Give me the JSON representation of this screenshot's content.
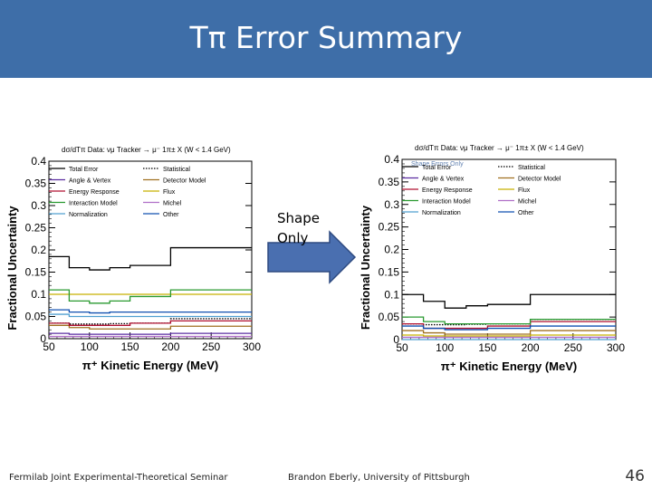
{
  "slide": {
    "title": "Tπ Error Summary",
    "arrow_label_line1": "Shape",
    "arrow_label_line2": "Only",
    "footer_left": "Fermilab Joint Experimental-Theoretical Seminar",
    "footer_center": "Brandon Eberly, University of Pittsburgh",
    "page_number": "46",
    "colors": {
      "title_bar": "#3e6ea8",
      "arrow": "#4a6fb0"
    }
  },
  "chart_data": [
    {
      "type": "line",
      "title": "dσ/dTπ Data: νμ Tracker → μ⁻ 1π± X (W < 1.4 GeV)",
      "subtitle": "",
      "xlabel": "π⁺ Kinetic Energy (MeV)",
      "ylabel": "Fractional Uncertainty",
      "xlim": [
        50,
        300
      ],
      "ylim": [
        0,
        0.4
      ],
      "x_ticks": [
        50,
        100,
        150,
        200,
        250,
        300
      ],
      "y_ticks": [
        0,
        0.05,
        0.1,
        0.15,
        0.2,
        0.25,
        0.3,
        0.35,
        0.4
      ],
      "bin_edges": [
        50,
        75,
        100,
        125,
        150,
        200,
        300
      ],
      "grid": false,
      "legend_position": "top",
      "series": [
        {
          "name": "Total Error",
          "color": "#000000",
          "dash": "solid",
          "values": [
            0.185,
            0.16,
            0.155,
            0.16,
            0.165,
            0.205
          ]
        },
        {
          "name": "Statistical",
          "color": "#000000",
          "dash": "dotted",
          "values": [
            0.035,
            0.033,
            0.033,
            0.034,
            0.035,
            0.045
          ]
        },
        {
          "name": "Angle & Vertex",
          "color": "#5a2ca0",
          "dash": "solid",
          "values": [
            0.012,
            0.01,
            0.01,
            0.01,
            0.01,
            0.012
          ]
        },
        {
          "name": "Detector Model",
          "color": "#a07020",
          "dash": "solid",
          "values": [
            0.03,
            0.025,
            0.022,
            0.022,
            0.022,
            0.028
          ]
        },
        {
          "name": "Energy Response",
          "color": "#b01030",
          "dash": "solid",
          "values": [
            0.035,
            0.03,
            0.03,
            0.03,
            0.035,
            0.04
          ]
        },
        {
          "name": "Flux",
          "color": "#c8b000",
          "dash": "solid",
          "values": [
            0.1,
            0.1,
            0.1,
            0.1,
            0.1,
            0.1
          ]
        },
        {
          "name": "Interaction Model",
          "color": "#2a9a30",
          "dash": "solid",
          "values": [
            0.11,
            0.085,
            0.08,
            0.085,
            0.095,
            0.11
          ]
        },
        {
          "name": "Michel",
          "color": "#b070c8",
          "dash": "solid",
          "values": [
            0.005,
            0.005,
            0.005,
            0.005,
            0.005,
            0.005
          ]
        },
        {
          "name": "Normalization",
          "color": "#50a0d0",
          "dash": "solid",
          "values": [
            0.055,
            0.05,
            0.05,
            0.05,
            0.05,
            0.05
          ]
        },
        {
          "name": "Other",
          "color": "#1050b0",
          "dash": "solid",
          "values": [
            0.065,
            0.06,
            0.058,
            0.06,
            0.06,
            0.06
          ]
        }
      ]
    },
    {
      "type": "line",
      "title": "dσ/dTπ Data: νμ Tracker → μ⁻ 1π± X (W < 1.4 GeV)",
      "subtitle": "Shape Errors Only",
      "xlabel": "π⁺ Kinetic Energy (MeV)",
      "ylabel": "Fractional Uncertainty",
      "xlim": [
        50,
        300
      ],
      "ylim": [
        0,
        0.4
      ],
      "x_ticks": [
        50,
        100,
        150,
        200,
        250,
        300
      ],
      "y_ticks": [
        0,
        0.05,
        0.1,
        0.15,
        0.2,
        0.25,
        0.3,
        0.35,
        0.4
      ],
      "bin_edges": [
        50,
        75,
        100,
        125,
        150,
        200,
        300
      ],
      "grid": false,
      "legend_position": "top",
      "series": [
        {
          "name": "Total Error",
          "color": "#000000",
          "dash": "solid",
          "values": [
            0.1,
            0.085,
            0.07,
            0.075,
            0.078,
            0.1
          ]
        },
        {
          "name": "Statistical",
          "color": "#000000",
          "dash": "dotted",
          "values": [
            0.035,
            0.033,
            0.033,
            0.034,
            0.035,
            0.045
          ]
        },
        {
          "name": "Angle & Vertex",
          "color": "#5a2ca0",
          "dash": "solid",
          "values": [
            0.005,
            0.005,
            0.005,
            0.005,
            0.005,
            0.005
          ]
        },
        {
          "name": "Detector Model",
          "color": "#a07020",
          "dash": "solid",
          "values": [
            0.02,
            0.015,
            0.012,
            0.012,
            0.012,
            0.02
          ]
        },
        {
          "name": "Energy Response",
          "color": "#b01030",
          "dash": "solid",
          "values": [
            0.035,
            0.025,
            0.025,
            0.025,
            0.03,
            0.04
          ]
        },
        {
          "name": "Flux",
          "color": "#c8b000",
          "dash": "solid",
          "values": [
            0.01,
            0.008,
            0.008,
            0.008,
            0.008,
            0.01
          ]
        },
        {
          "name": "Interaction Model",
          "color": "#2a9a30",
          "dash": "solid",
          "values": [
            0.05,
            0.04,
            0.035,
            0.035,
            0.035,
            0.045
          ]
        },
        {
          "name": "Michel",
          "color": "#b070c8",
          "dash": "solid",
          "values": [
            0.005,
            0.005,
            0.005,
            0.005,
            0.005,
            0.005
          ]
        },
        {
          "name": "Normalization",
          "color": "#50a0d0",
          "dash": "solid",
          "values": [
            0.0,
            0.0,
            0.0,
            0.0,
            0.0,
            0.0
          ]
        },
        {
          "name": "Other",
          "color": "#1050b0",
          "dash": "solid",
          "values": [
            0.03,
            0.025,
            0.022,
            0.022,
            0.025,
            0.03
          ]
        }
      ]
    }
  ]
}
